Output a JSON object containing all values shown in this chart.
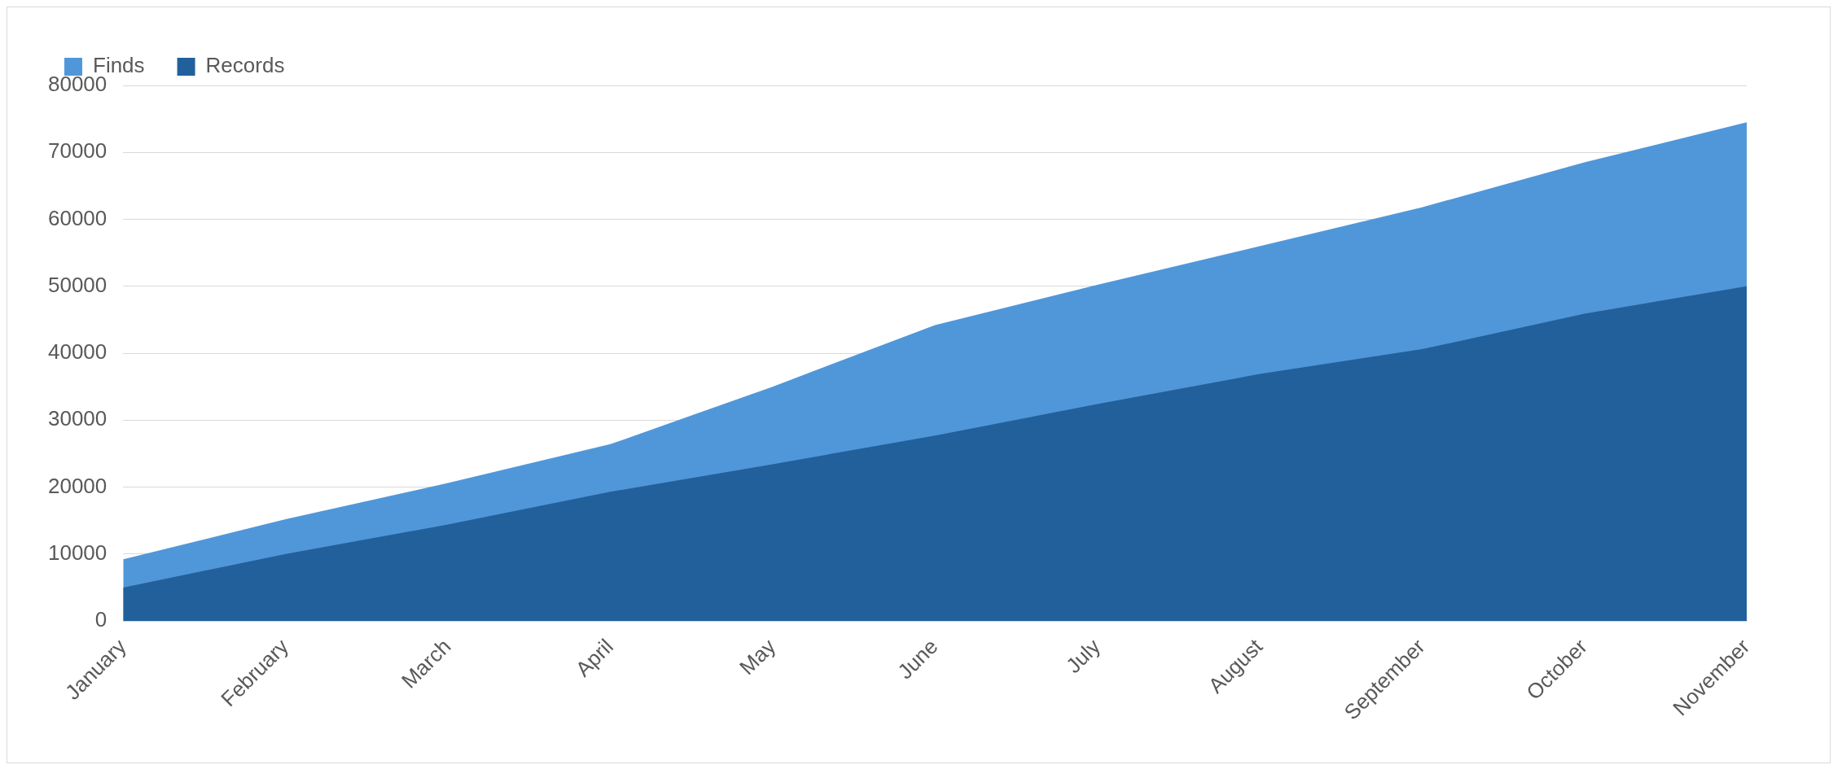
{
  "chart_data": {
    "type": "area",
    "categories": [
      "January",
      "February",
      "March",
      "April",
      "May",
      "June",
      "July",
      "August",
      "September",
      "October",
      "November"
    ],
    "series": [
      {
        "name": "Finds",
        "color": "#5097d9",
        "values": [
          9200,
          15200,
          20600,
          26400,
          35000,
          44200,
          50200,
          56000,
          61800,
          68500,
          74500
        ]
      },
      {
        "name": "Records",
        "color": "#22609c",
        "values": [
          5000,
          10000,
          14400,
          19300,
          23400,
          27700,
          32400,
          36900,
          40600,
          45900,
          50000
        ]
      }
    ],
    "ylim": [
      0,
      80000
    ],
    "yticks": [
      0,
      10000,
      20000,
      30000,
      40000,
      50000,
      60000,
      70000,
      80000
    ],
    "grid": "y",
    "legend": "top left"
  }
}
